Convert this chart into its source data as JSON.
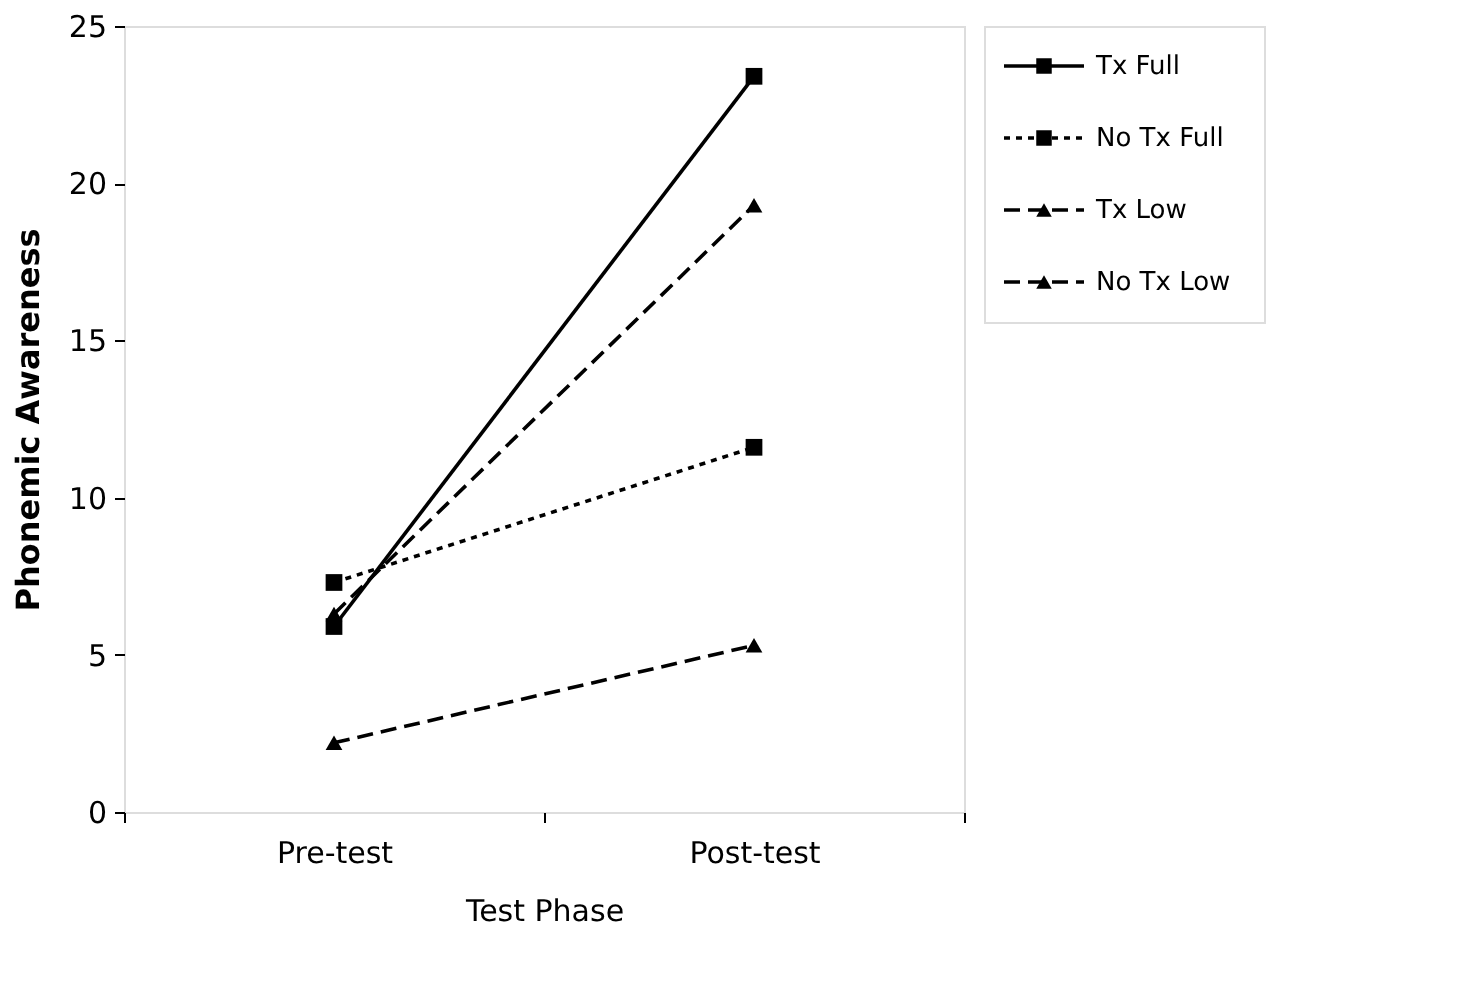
{
  "chart_data": {
    "type": "line",
    "xlabel": "Test Phase",
    "ylabel": "Phonemic Awareness",
    "categories": [
      "Pre-test",
      "Post-test"
    ],
    "series": [
      {
        "name": "Tx Full",
        "color": "#000000",
        "values": [
          5.9,
          23.4
        ],
        "marker": "square",
        "line_style": "solid"
      },
      {
        "name": "No Tx Full",
        "color": "#000000",
        "values": [
          7.3,
          11.6
        ],
        "marker": "square",
        "line_style": "dotted"
      },
      {
        "name": "Tx Low",
        "color": "#000000",
        "values": [
          6.3,
          19.3
        ],
        "marker": "triangle",
        "line_style": "dashed"
      },
      {
        "name": "No Tx Low",
        "color": "#000000",
        "values": [
          2.2,
          5.3
        ],
        "marker": "triangle",
        "line_style": "dashed"
      }
    ],
    "ylim": [
      0,
      25
    ],
    "yticks": [
      0,
      5,
      10,
      15,
      20,
      25
    ],
    "grid": false,
    "legend": "top right"
  }
}
